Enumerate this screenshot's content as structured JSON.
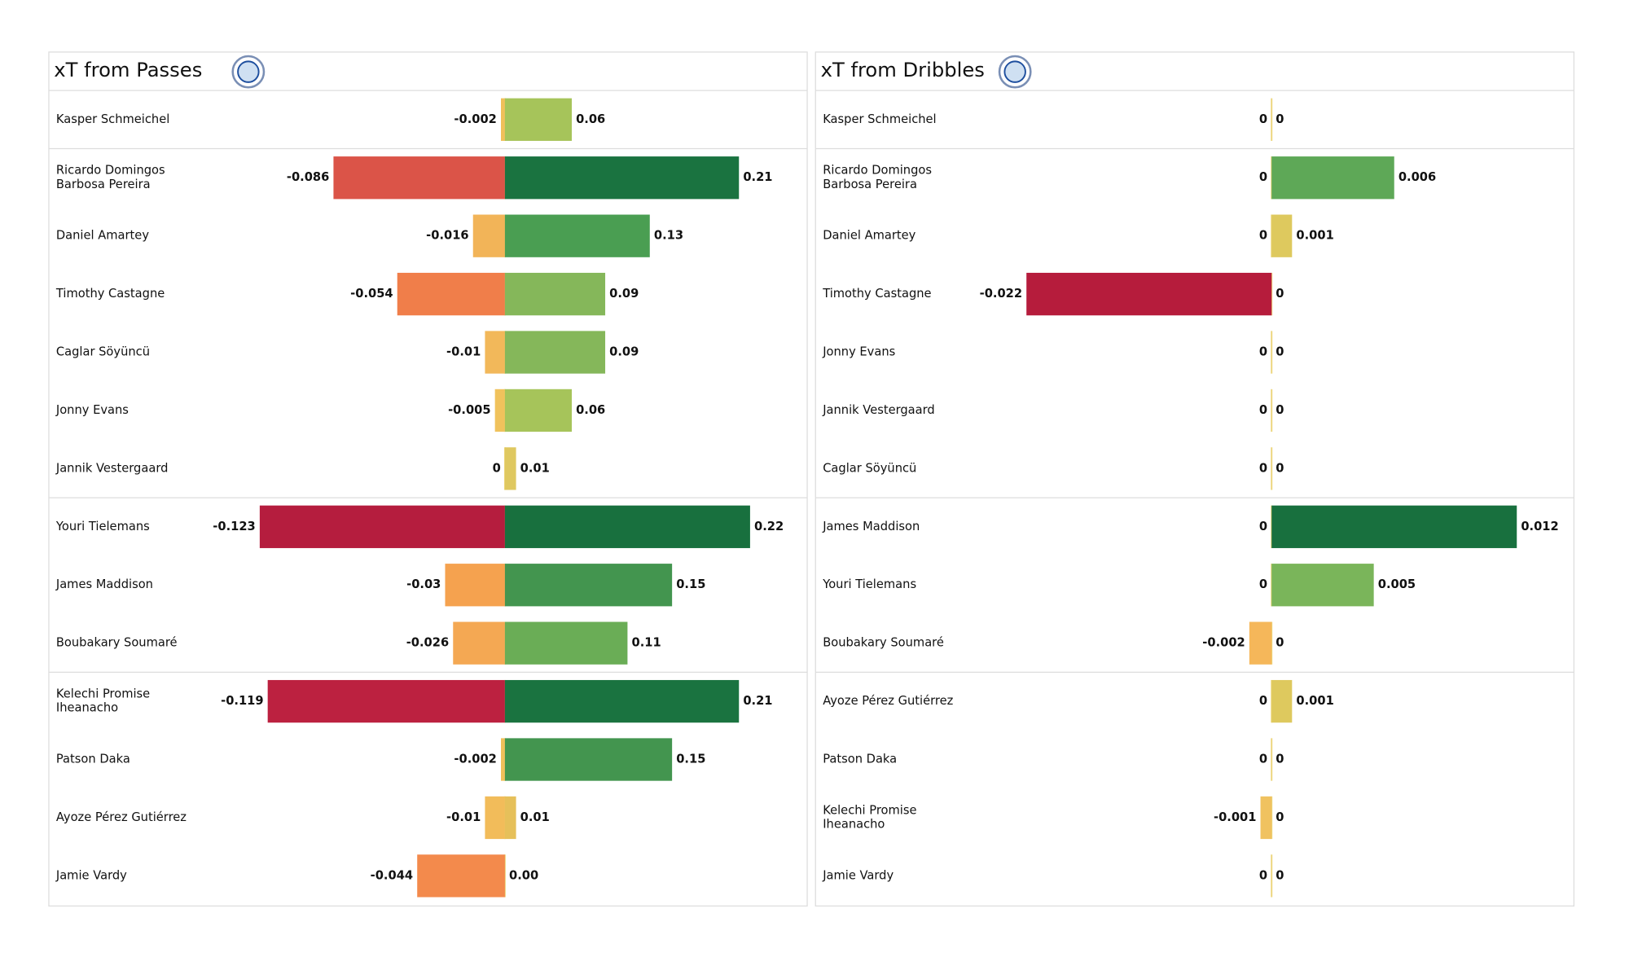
{
  "chart_data": [
    {
      "type": "diverging_bar",
      "title": "xT from Passes",
      "categories": [
        "Kasper Schmeichel",
        "Ricardo Domingos Barbosa Pereira",
        "Daniel Amartey",
        "Timothy Castagne",
        "Caglar Söyüncü",
        "Jonny Evans",
        "Jannik Vestergaard",
        "Youri Tielemans",
        "James Maddison",
        "Boubakary Soumaré",
        "Kelechi Promise Iheanacho",
        "Patson Daka",
        "Ayoze Pérez Gutiérrez",
        "Jamie Vardy"
      ],
      "series": [
        {
          "values": [
            -0.002,
            -0.086,
            -0.016,
            -0.054,
            -0.01,
            -0.005,
            0,
            -0.123,
            -0.03,
            -0.026,
            -0.119,
            -0.002,
            -0.01,
            -0.044
          ],
          "colors": [
            "#f0c05a",
            "#db5448",
            "#f2b458",
            "#f07e4a",
            "#f2b85a",
            "#f0c25c",
            "#e8cc62",
            "#b51d3e",
            "#f5a24f",
            "#f4a853",
            "#bc2140",
            "#f0c05a",
            "#f2bc5a",
            "#f38a4c"
          ]
        },
        {
          "values": [
            0.06,
            0.21,
            0.13,
            0.09,
            0.09,
            0.06,
            0.01,
            0.22,
            0.15,
            0.11,
            0.21,
            0.15,
            0.01,
            0
          ],
          "value_labels": [
            "0.06",
            "0.21",
            "0.13",
            "0.09",
            "0.09",
            "0.06",
            "0.01",
            "0.22",
            "0.15",
            "0.11",
            "0.21",
            "0.15",
            "0.01",
            "0.00"
          ],
          "colors": [
            "#a6c45a",
            "#1a7340",
            "#4a9e52",
            "#85b75a",
            "#85b75a",
            "#a6c45a",
            "#dfc860",
            "#18703e",
            "#43954f",
            "#6aad56",
            "#1a7340",
            "#43954f",
            "#e6c05a",
            "#e8cc62"
          ]
        }
      ]
    },
    {
      "type": "diverging_bar",
      "title": "xT from Dribbles",
      "categories": [
        "Kasper Schmeichel",
        "Ricardo Domingos Barbosa Pereira",
        "Daniel Amartey",
        "Timothy Castagne",
        "Jonny Evans",
        "Jannik Vestergaard",
        "Caglar Söyüncü",
        "James Maddison",
        "Youri Tielemans",
        "Boubakary Soumaré",
        "Ayoze Pérez Gutiérrez",
        "Patson Daka",
        "Kelechi Promise Iheanacho",
        "Jamie Vardy"
      ],
      "series": [
        {
          "values": [
            0,
            0,
            0,
            -0.022,
            0,
            0,
            0,
            0,
            0,
            -0.002,
            0,
            0,
            -0.001,
            0
          ],
          "colors": [
            "#e8cc62",
            "#e8cc62",
            "#e8cc62",
            "#b61c3c",
            "#e8cc62",
            "#e8cc62",
            "#e8cc62",
            "#e8cc62",
            "#e8cc62",
            "#f5b75a",
            "#e8cc62",
            "#e8cc62",
            "#f0c260",
            "#e8cc62"
          ]
        },
        {
          "values": [
            0,
            0.006,
            0.001,
            0,
            0,
            0,
            0,
            0.012,
            0.005,
            0,
            0.001,
            0,
            0,
            0
          ],
          "colors": [
            "#e8cc62",
            "#5ea857",
            "#dec95e",
            "#e8cc62",
            "#e8cc62",
            "#e8cc62",
            "#e8cc62",
            "#18703e",
            "#7ab55a",
            "#e8cc62",
            "#dec95e",
            "#e8cc62",
            "#e8cc62",
            "#e8cc62"
          ]
        }
      ]
    }
  ]
}
